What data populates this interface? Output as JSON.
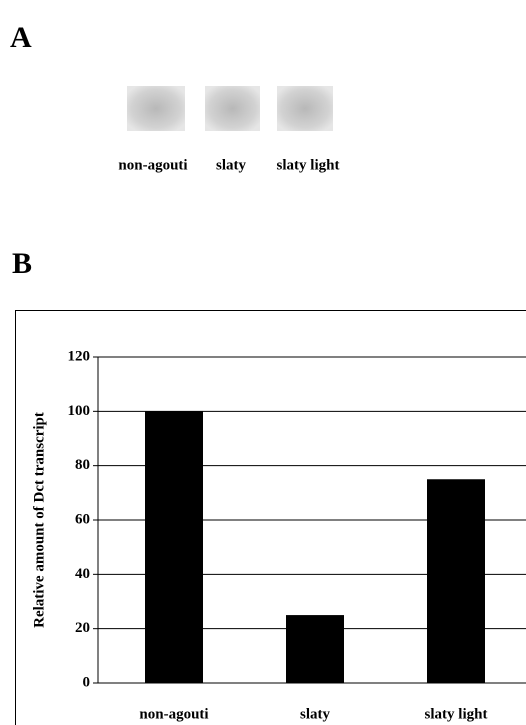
{
  "figure": {
    "panel_labels": [
      "A",
      "B"
    ],
    "blot_labels": [
      "non-agouti",
      "slaty",
      "slaty light"
    ]
  },
  "chart_data": {
    "type": "bar",
    "y_label": "Relative amount of Dct transcript",
    "categories": [
      "non-agouti",
      "slaty",
      "slaty light"
    ],
    "values": [
      100,
      25,
      75
    ],
    "color": "#000000",
    "ylim": [
      0,
      120
    ],
    "yticks": [
      0,
      20,
      40,
      60,
      80,
      100,
      120
    ],
    "grid": true
  }
}
